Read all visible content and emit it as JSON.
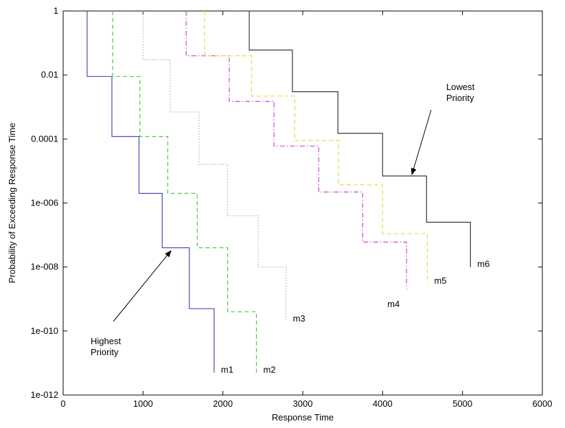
{
  "chart_data": {
    "type": "line",
    "title": "",
    "xlabel": "Response Time",
    "ylabel": "Probability of Exceeding Response Time",
    "xlim": [
      0,
      6000
    ],
    "ylim_log10": [
      -12,
      0
    ],
    "x_ticks": [
      0,
      1000,
      2000,
      3000,
      4000,
      5000,
      6000
    ],
    "x_tick_labels": [
      "0",
      "1000",
      "2000",
      "3000",
      "4000",
      "5000",
      "6000"
    ],
    "y_ticks_log10": [
      -12,
      -10,
      -8,
      -6,
      -4,
      -2,
      0
    ],
    "y_tick_labels": [
      "1e-012",
      "1e-010",
      "1e-008",
      "1e-006",
      "0.0001",
      "0.01",
      "1"
    ],
    "grid": false,
    "y_scale": "log",
    "series": [
      {
        "label": "m1",
        "color": "#4b4bb0",
        "dash": "solid",
        "points": [
          [
            300,
            1
          ],
          [
            300,
            0.009
          ],
          [
            610,
            0.009
          ],
          [
            610,
            0.00012
          ],
          [
            950,
            0.00012
          ],
          [
            950,
            2e-06
          ],
          [
            1240,
            2e-06
          ],
          [
            1240,
            4e-08
          ],
          [
            1580,
            4e-08
          ],
          [
            1580,
            5e-10
          ],
          [
            1890,
            5e-10
          ],
          [
            1890,
            5e-12
          ]
        ]
      },
      {
        "label": "m2",
        "color": "#44cc44",
        "dash": "dashed",
        "points": [
          [
            620,
            1
          ],
          [
            620,
            0.009
          ],
          [
            960,
            0.009
          ],
          [
            960,
            0.00012
          ],
          [
            1310,
            0.00012
          ],
          [
            1310,
            2e-06
          ],
          [
            1680,
            2e-06
          ],
          [
            1680,
            4e-08
          ],
          [
            2060,
            4e-08
          ],
          [
            2060,
            4e-10
          ],
          [
            2420,
            4e-10
          ],
          [
            2420,
            5e-12
          ]
        ]
      },
      {
        "label": "m3",
        "color": "#aaaaaa",
        "dash": "dotted",
        "points": [
          [
            1000,
            1
          ],
          [
            1000,
            0.03
          ],
          [
            1340,
            0.03
          ],
          [
            1340,
            0.0007
          ],
          [
            1700,
            0.0007
          ],
          [
            1700,
            1.6e-05
          ],
          [
            2060,
            1.6e-05
          ],
          [
            2060,
            4e-07
          ],
          [
            2440,
            4e-07
          ],
          [
            2440,
            1e-08
          ],
          [
            2790,
            1e-08
          ],
          [
            2790,
            2e-10
          ]
        ]
      },
      {
        "label": "m4",
        "color": "#cc44cc",
        "dash": "dashdot",
        "points": [
          [
            1540,
            1
          ],
          [
            1540,
            0.04
          ],
          [
            2080,
            0.04
          ],
          [
            2080,
            0.0015
          ],
          [
            2640,
            0.0015
          ],
          [
            2640,
            6e-05
          ],
          [
            3200,
            6e-05
          ],
          [
            3200,
            2.2e-06
          ],
          [
            3750,
            2.2e-06
          ],
          [
            3750,
            6e-08
          ],
          [
            4300,
            6e-08
          ],
          [
            4300,
            2e-09
          ]
        ]
      },
      {
        "label": "m5",
        "color": "#e6dc3c",
        "dash": "dashed",
        "points": [
          [
            1770,
            1
          ],
          [
            1770,
            0.04
          ],
          [
            2360,
            0.04
          ],
          [
            2360,
            0.0022
          ],
          [
            2900,
            0.0022
          ],
          [
            2900,
            9e-05
          ],
          [
            3450,
            9e-05
          ],
          [
            3450,
            3.7e-06
          ],
          [
            4000,
            3.7e-06
          ],
          [
            4000,
            1.1e-07
          ],
          [
            4560,
            1.1e-07
          ],
          [
            4560,
            3e-09
          ]
        ]
      },
      {
        "label": "m6",
        "color": "#333333",
        "dash": "solid",
        "points": [
          [
            2330,
            1
          ],
          [
            2330,
            0.06
          ],
          [
            2870,
            0.06
          ],
          [
            2870,
            0.003
          ],
          [
            3440,
            0.003
          ],
          [
            3440,
            0.00015
          ],
          [
            4000,
            0.00015
          ],
          [
            4000,
            7e-06
          ],
          [
            4550,
            7e-06
          ],
          [
            4550,
            2.5e-07
          ],
          [
            5100,
            2.5e-07
          ],
          [
            5100,
            1e-08
          ]
        ]
      }
    ],
    "annotations": [
      {
        "text": "Highest Priority",
        "lines": [
          "Highest",
          "Priority"
        ],
        "points_to_series": "m1"
      },
      {
        "text": "Lowest Priority",
        "lines": [
          "Lowest",
          "Priority"
        ],
        "points_to_series": "m6"
      }
    ]
  }
}
